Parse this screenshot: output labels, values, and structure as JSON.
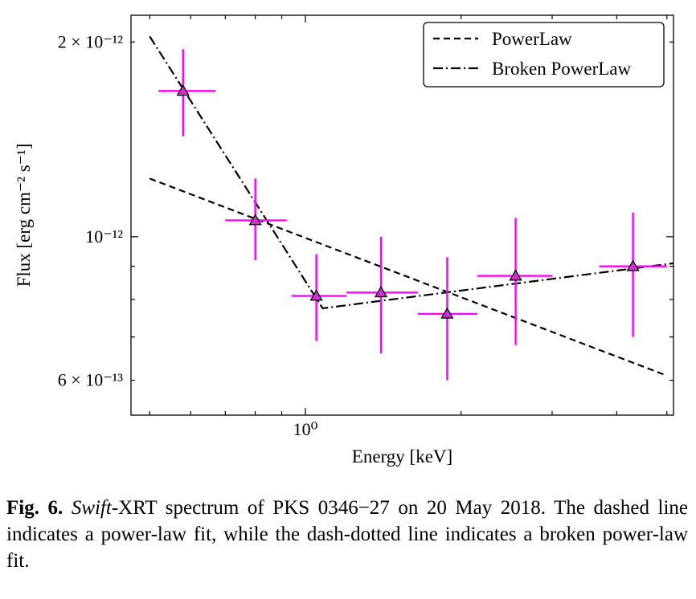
{
  "chart_data": {
    "type": "scatter",
    "xlabel": "Energy [keV]",
    "ylabel": "Flux [erg cm⁻² s⁻¹]",
    "xscale": "log",
    "yscale": "log",
    "xlim": [
      0.46,
      5.15
    ],
    "ylim": [
      5.3e-13,
      2.2e-12
    ],
    "x_tick_label": "10⁰",
    "y_tick_labels": [
      "2 × 10⁻¹²",
      "10⁻¹²",
      "6 × 10⁻¹³"
    ],
    "y_ticks": [
      2e-12,
      1e-12,
      6e-13
    ],
    "grid": false,
    "legend_position": "top-right",
    "legend": [
      "PowerLaw",
      "Broken PowerLaw"
    ],
    "colors": {
      "data": "#ff00ff",
      "marker_fill": "#cc33cc",
      "fit": "#000000"
    },
    "data_points": [
      {
        "x": 0.58,
        "xerr": [
          0.52,
          0.67
        ],
        "y": 1.68e-12,
        "yerr": [
          1.43e-12,
          1.95e-12
        ]
      },
      {
        "x": 0.8,
        "xerr": [
          0.7,
          0.92
        ],
        "y": 1.06e-12,
        "yerr": [
          9.2e-13,
          1.23e-12
        ]
      },
      {
        "x": 1.05,
        "xerr": [
          0.94,
          1.2
        ],
        "y": 8.1e-13,
        "yerr": [
          6.9e-13,
          9.4e-13
        ]
      },
      {
        "x": 1.4,
        "xerr": [
          1.2,
          1.65
        ],
        "y": 8.2e-13,
        "yerr": [
          6.6e-13,
          1e-12
        ]
      },
      {
        "x": 1.88,
        "xerr": [
          1.65,
          2.15
        ],
        "y": 7.6e-13,
        "yerr": [
          6e-13,
          9.3e-13
        ]
      },
      {
        "x": 2.55,
        "xerr": [
          2.15,
          3.0
        ],
        "y": 8.7e-13,
        "yerr": [
          6.8e-13,
          1.07e-12
        ]
      },
      {
        "x": 4.3,
        "xerr": [
          3.7,
          5.0
        ],
        "y": 9e-13,
        "yerr": [
          7e-13,
          1.09e-12
        ]
      }
    ],
    "series": [
      {
        "name": "PowerLaw",
        "style": "dashed",
        "x": [
          0.5,
          5.0
        ],
        "y": [
          1.23e-12,
          6.1e-13
        ]
      },
      {
        "name": "Broken PowerLaw",
        "style": "dashdot",
        "x": [
          0.5,
          1.08,
          5.15
        ],
        "y": [
          2.04e-12,
          7.75e-13,
          9.1e-13
        ]
      }
    ]
  },
  "caption": {
    "fig_label": "Fig. 6.",
    "italic_part": "Swift",
    "text": "-XRT spectrum of PKS 0346−27 on 20 May 2018. The dashed line indicates a power-law fit, while the dash-dotted line indicates a broken power-law fit."
  }
}
